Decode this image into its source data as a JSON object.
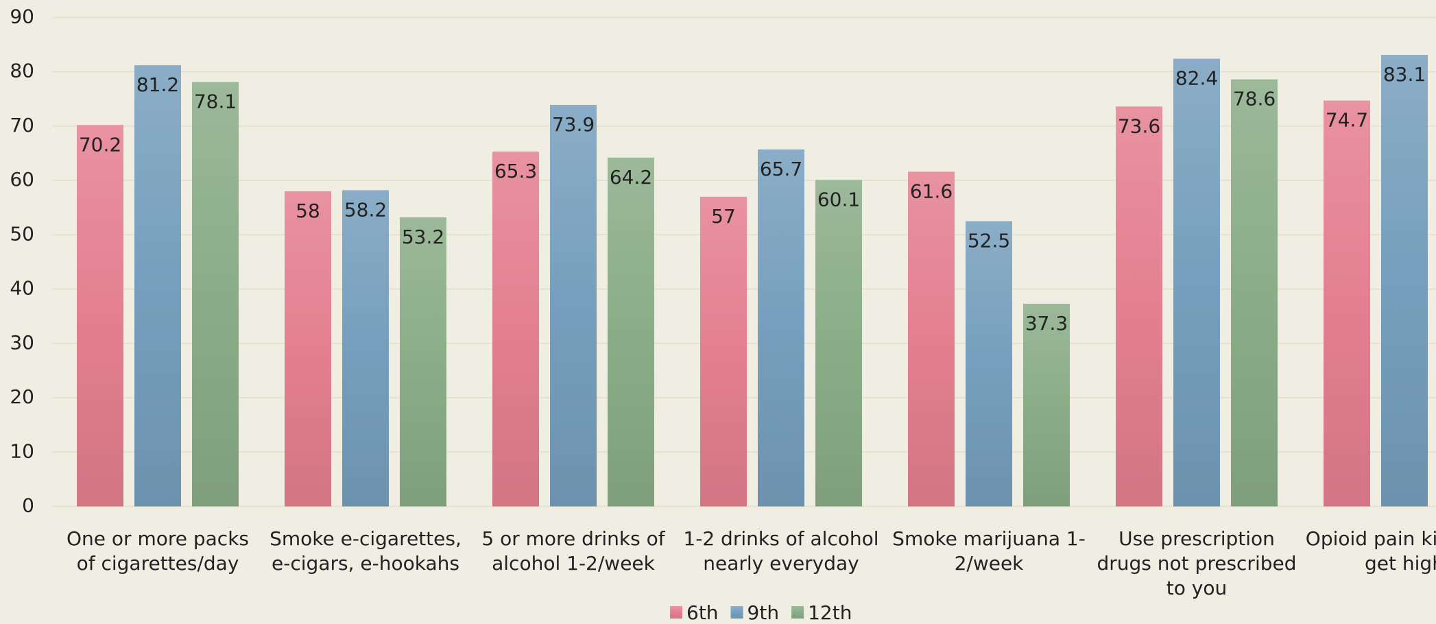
{
  "chart_data": {
    "type": "bar",
    "categories": [
      "One or more packs of cigarettes/day",
      "Smoke e-cigarettes, e-cigars, e-hookahs",
      "5 or more drinks of alcohol 1-2/week",
      "1-2 drinks of alcohol nearly everyday",
      "Smoke marijuana 1-2/week",
      "Use prescription drugs not prescribed to you",
      "Opioid pain killers to get high"
    ],
    "series": [
      {
        "name": "6th",
        "color": "#e47f91",
        "values": [
          70.2,
          58,
          65.3,
          57,
          61.6,
          73.6,
          74.7
        ]
      },
      {
        "name": "9th",
        "color": "#769fbd",
        "values": [
          81.2,
          58.2,
          73.9,
          65.7,
          52.5,
          82.4,
          83.1
        ]
      },
      {
        "name": "12th",
        "color": "#8aad87",
        "values": [
          78.1,
          53.2,
          64.2,
          60.1,
          37.3,
          78.6,
          null
        ]
      }
    ],
    "ylim": [
      0,
      90
    ],
    "yticks": [
      0,
      10,
      20,
      30,
      40,
      50,
      60,
      70,
      80,
      90
    ],
    "grid": true,
    "legend": "bottom"
  }
}
